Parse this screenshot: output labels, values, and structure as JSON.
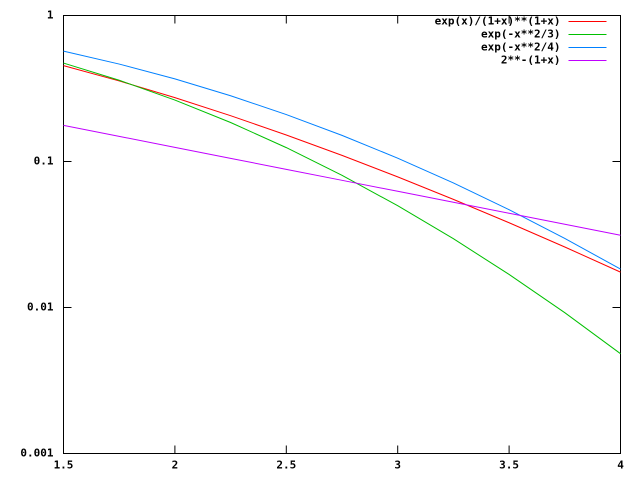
{
  "chart_data": {
    "type": "line",
    "x": [
      1.5,
      1.75,
      2,
      2.25,
      2.5,
      2.75,
      3,
      3.25,
      3.5,
      3.75,
      4
    ],
    "series": [
      {
        "name": "exp(x)/(1+x)**(1+x)",
        "color": "#ff0000",
        "values": [
          0.4535,
          0.3563,
          0.2737,
          0.2059,
          0.1519,
          0.1101,
          0.07846,
          0.05504,
          0.03807,
          0.02597,
          0.01747
        ]
      },
      {
        "name": "exp(-x**2/3)",
        "color": "#00c000",
        "values": [
          0.4724,
          0.3603,
          0.2636,
          0.185,
          0.1245,
          0.0804,
          0.04979,
          0.02958,
          0.01685,
          0.00921,
          0.004828
        ]
      },
      {
        "name": "exp(-x**2/4)",
        "color": "#0080ff",
        "values": [
          0.5698,
          0.465,
          0.3679,
          0.2821,
          0.2096,
          0.151,
          0.1054,
          0.07132,
          0.04677,
          0.02973,
          0.01832
        ]
      },
      {
        "name": "2**-(1+x)",
        "color": "#c000ff",
        "values": [
          0.1768,
          0.1487,
          0.125,
          0.1051,
          0.08839,
          0.07433,
          0.0625,
          0.05256,
          0.04419,
          0.03716,
          0.03125
        ]
      }
    ],
    "xlim": [
      1.5,
      4
    ],
    "xticks": [
      1.5,
      2,
      2.5,
      3,
      3.5,
      4
    ],
    "ylim": [
      0.001,
      1
    ],
    "yticks": [
      0.001,
      0.01,
      0.1,
      1
    ],
    "log_y": true,
    "legend": "top-right"
  }
}
